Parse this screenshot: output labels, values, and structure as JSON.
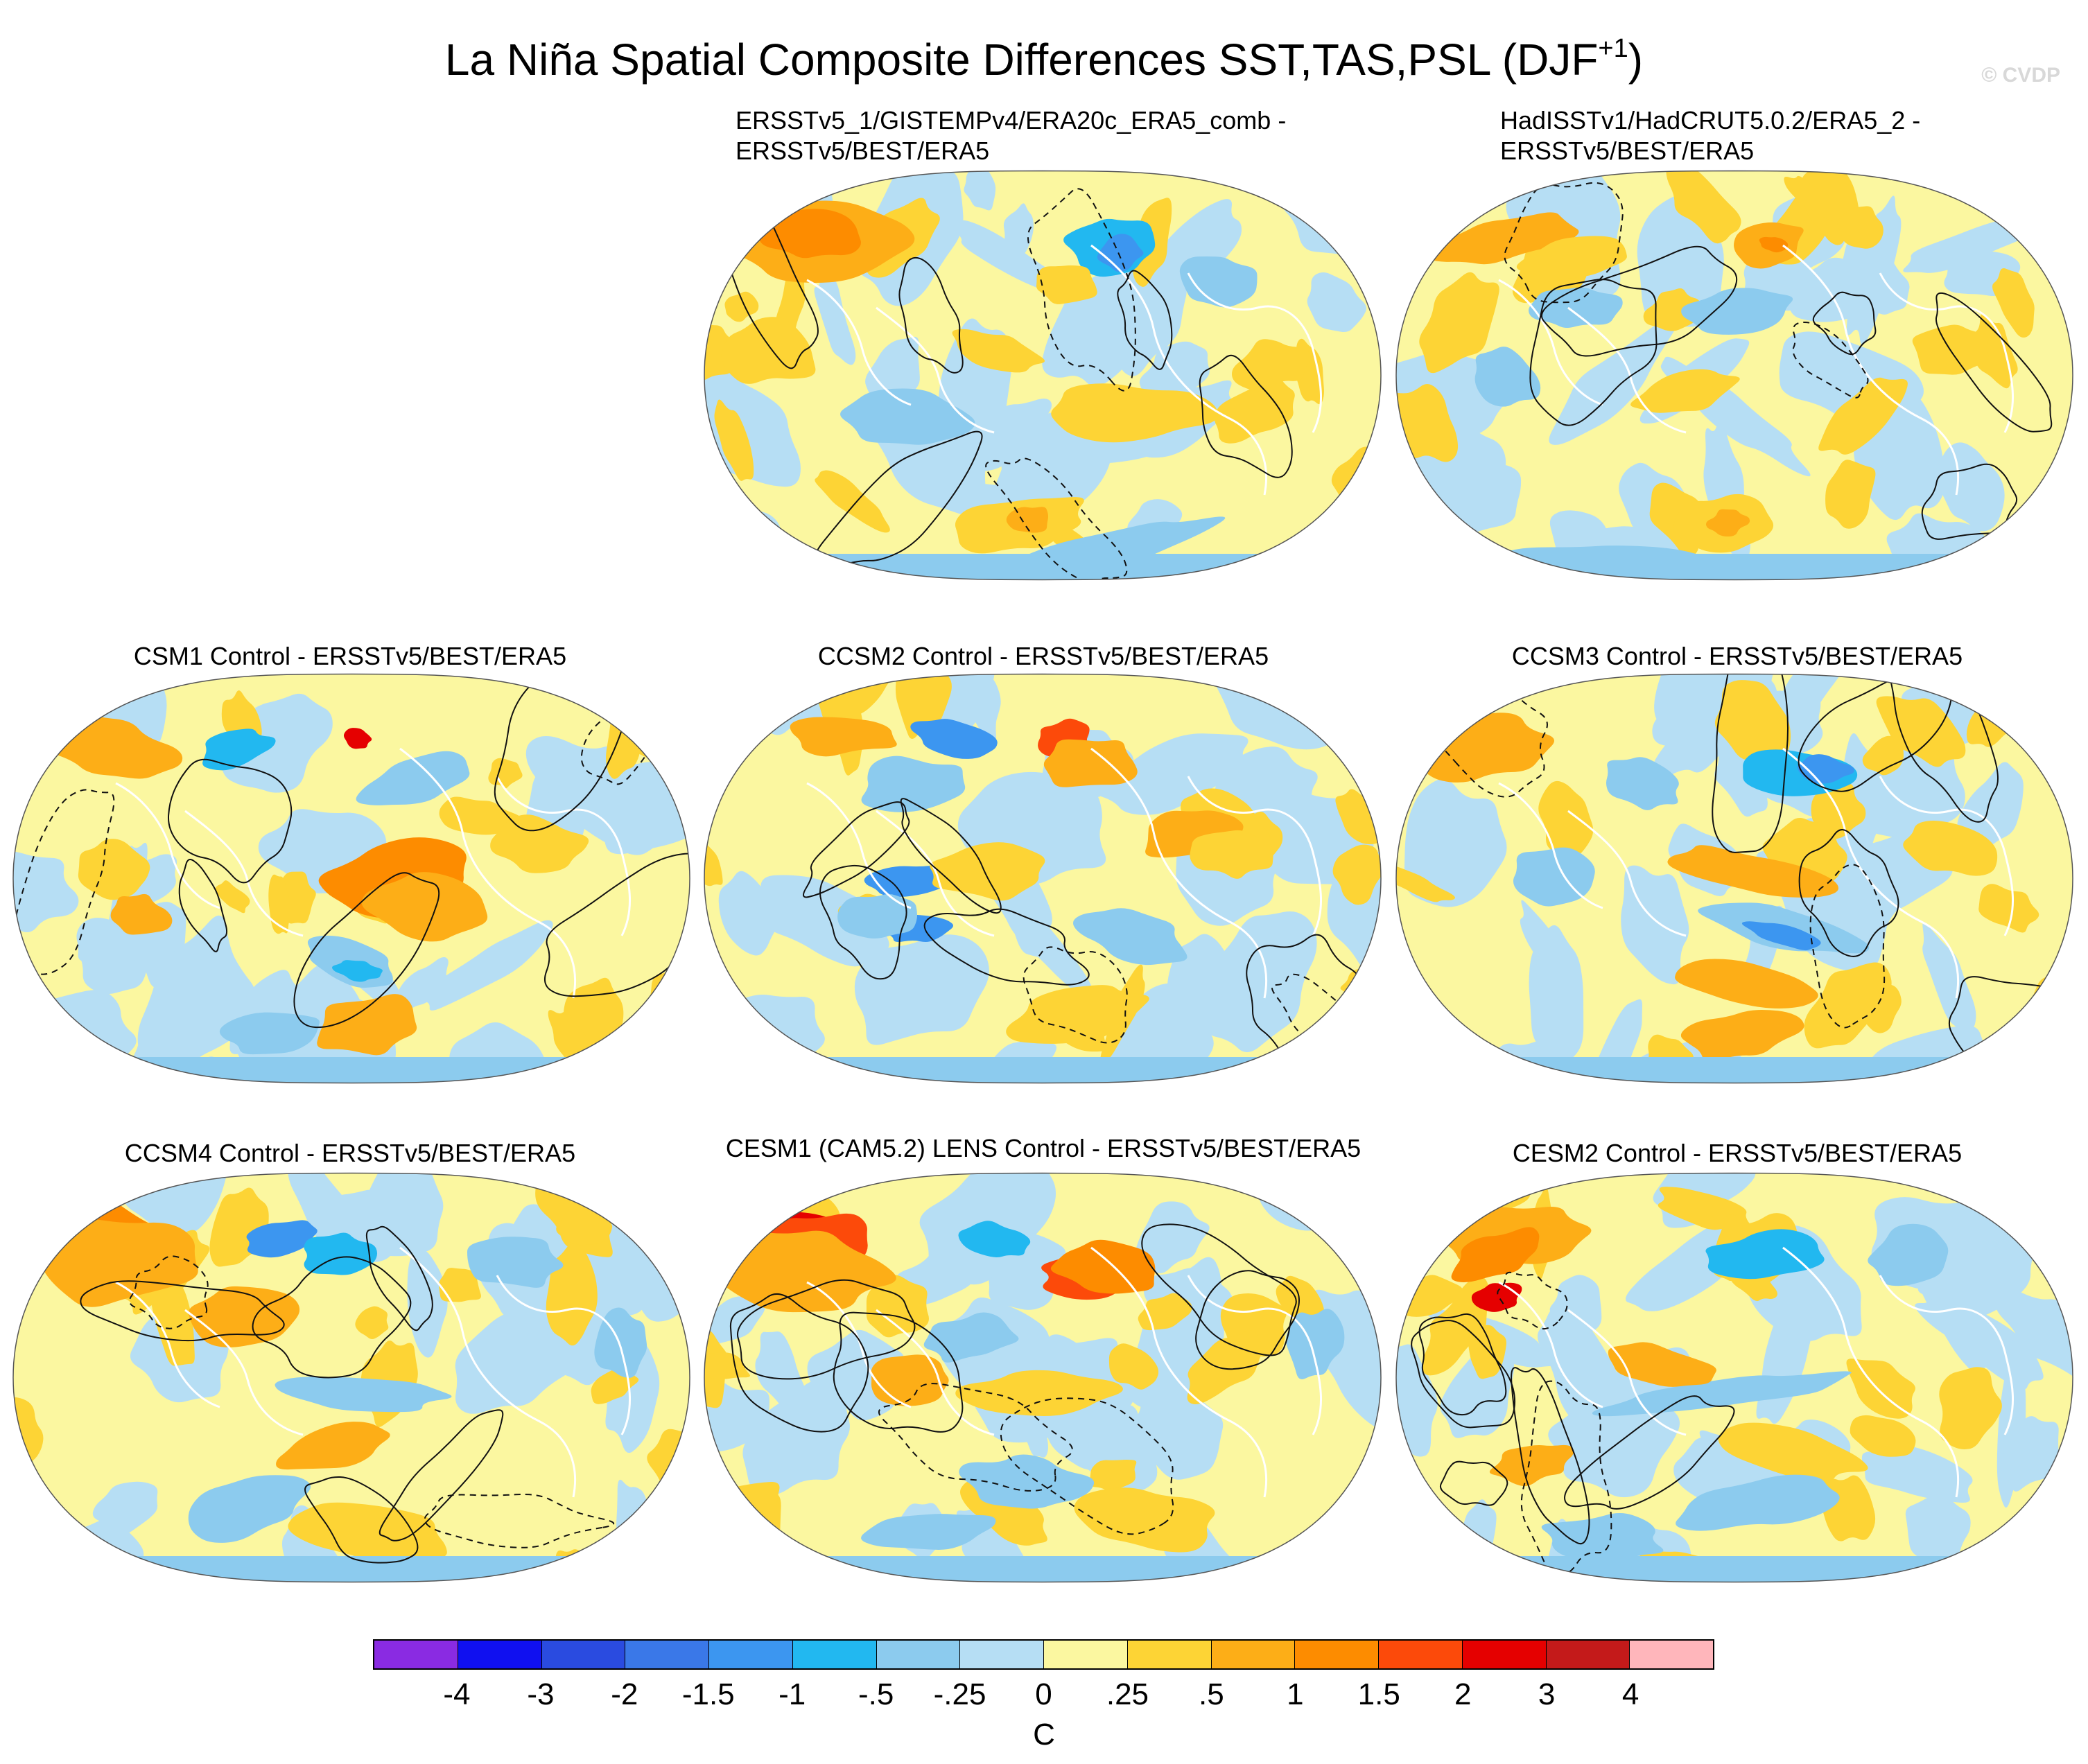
{
  "title_main": "La Niña Spatial Composite Differences SST,TAS,PSL (DJF",
  "title_sup": "+1",
  "title_close": ")",
  "watermark": "© CVDP",
  "panels": [
    {
      "id": "obs1",
      "title_lines": [
        "ERSSTv5_1/GISTEMPv4/ERA20c_ERA5_comb -",
        "ERSSTv5/BEST/ERA5"
      ],
      "theme": "obs-warm-siberia"
    },
    {
      "id": "obs2",
      "title_lines": [
        "HadISSTv1/HadCRUT5.0.2/ERA5_2 -",
        "ERSSTv5/BEST/ERA5"
      ],
      "theme": "obs-mild"
    },
    {
      "id": "csm1",
      "title_lines": [
        "CSM1 Control - ERSSTv5/BEST/ERA5"
      ],
      "theme": "model-warm-pacific"
    },
    {
      "id": "ccsm2",
      "title_lines": [
        "CCSM2 Control - ERSSTv5/BEST/ERA5"
      ],
      "theme": "model-low"
    },
    {
      "id": "ccsm3",
      "title_lines": [
        "CCSM3 Control - ERSSTv5/BEST/ERA5"
      ],
      "theme": "model-dipole"
    },
    {
      "id": "ccsm4",
      "title_lines": [
        "CCSM4 Control - ERSSTv5/BEST/ERA5"
      ],
      "theme": "model-warm-europe"
    },
    {
      "id": "cesm1",
      "title_lines": [
        "CESM1 (CAM5.2) LENS Control - ERSSTv5/BEST/ERA5"
      ],
      "theme": "model-hot-europe"
    },
    {
      "id": "cesm2",
      "title_lines": [
        "CESM2 Control - ERSSTv5/BEST/ERA5"
      ],
      "theme": "model-cool-equator"
    }
  ],
  "colorbar": {
    "colors": [
      "#8a2be2",
      "#1010f0",
      "#2a4be0",
      "#3a78e8",
      "#3c96f0",
      "#22b8f0",
      "#8ccbee",
      "#b6def4",
      "#fbf7a0",
      "#fdd435",
      "#fdae17",
      "#fd8c00",
      "#fc4a0a",
      "#e50000",
      "#c41a1a",
      "#ffb6bb"
    ],
    "labels": [
      "-4",
      "-3",
      "-2",
      "-1.5",
      "-1",
      "-.5",
      "-.25",
      "0",
      ".25",
      ".5",
      "1",
      "1.5",
      "2",
      "3",
      "4"
    ],
    "units": "C"
  }
}
